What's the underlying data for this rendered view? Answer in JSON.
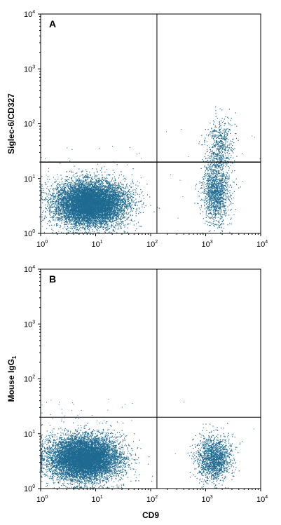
{
  "chart_data": [
    {
      "type": "scatter",
      "panel_label": "A",
      "xlabel": "",
      "ylabel": "Siglec-6/CD327",
      "x_scale": "log",
      "y_scale": "log",
      "xlim": [
        1,
        10000
      ],
      "ylim": [
        1,
        10000
      ],
      "x_ticks": [
        "10^0",
        "10^1",
        "10^2",
        "10^3",
        "10^4"
      ],
      "y_ticks": [
        "10^0",
        "10^1",
        "10^2",
        "10^3",
        "10^4"
      ],
      "quadrant_gate": {
        "x": 130,
        "y": 20
      },
      "point_color": "#1f6a91",
      "populations": [
        {
          "x_center": 8,
          "y_center": 3.5,
          "x_spread_decades": 0.32,
          "y_spread_decades": 0.2,
          "count": 9000
        },
        {
          "x_center": 1500,
          "y_center": 6,
          "x_spread_decades": 0.12,
          "y_spread_decades": 0.3,
          "count": 1400
        },
        {
          "x_center": 1800,
          "y_center": 40,
          "x_spread_decades": 0.12,
          "y_spread_decades": 0.25,
          "count": 500
        }
      ]
    },
    {
      "type": "scatter",
      "panel_label": "B",
      "xlabel": "CD9",
      "ylabel": "Mouse IgG1",
      "ylabel_main": "Mouse IgG",
      "ylabel_sub": "1",
      "x_scale": "log",
      "y_scale": "log",
      "xlim": [
        1,
        10000
      ],
      "ylim": [
        1,
        10000
      ],
      "x_ticks": [
        "10^0",
        "10^1",
        "10^2",
        "10^3",
        "10^4"
      ],
      "y_ticks": [
        "10^0",
        "10^1",
        "10^2",
        "10^3",
        "10^4"
      ],
      "quadrant_gate": {
        "x": 130,
        "y": 20
      },
      "point_color": "#1f6a91",
      "populations": [
        {
          "x_center": 6,
          "y_center": 3.5,
          "x_spread_decades": 0.32,
          "y_spread_decades": 0.2,
          "count": 9000
        },
        {
          "x_center": 1400,
          "y_center": 3.5,
          "x_spread_decades": 0.15,
          "y_spread_decades": 0.2,
          "count": 1600
        }
      ]
    }
  ]
}
